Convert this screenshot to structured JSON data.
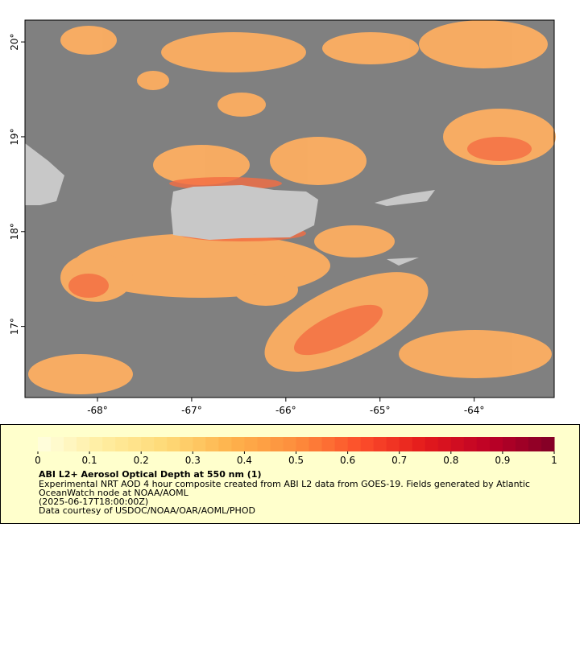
{
  "map": {
    "xlim": [
      -68.77,
      -63.15
    ],
    "ylim": [
      16.25,
      20.23
    ],
    "xticks": [
      {
        "value": -68,
        "label": "-68°"
      },
      {
        "value": -67,
        "label": "-67°"
      },
      {
        "value": -66,
        "label": "-66°"
      },
      {
        "value": -65,
        "label": "-65°"
      },
      {
        "value": -64,
        "label": "-64°"
      }
    ],
    "yticks": [
      {
        "value": 17,
        "label": "17°"
      },
      {
        "value": 18,
        "label": "18°"
      },
      {
        "value": 19,
        "label": "19°"
      },
      {
        "value": 20,
        "label": "20°"
      }
    ]
  },
  "colorbar": {
    "clim": [
      0,
      1
    ],
    "colors": [
      "#ffffe0",
      "#ffeda0",
      "#fed976",
      "#feb24c",
      "#fd8d3c",
      "#fc4e2a",
      "#e31a1c",
      "#bd0026",
      "#800026"
    ],
    "ticks": [
      0,
      0.1,
      0.2,
      0.3,
      0.4,
      0.5,
      0.6,
      0.7,
      0.8,
      0.9,
      1
    ]
  },
  "legend": {
    "title": "ABI L2+ Aerosol Optical Depth at 550 nm (1)",
    "lines": [
      "Experimental NRT AOD 4 hour composite created from ABI L2 data from GOES-19. Fields generated by Atlantic",
      "OceanWatch node at NOAA/AOML",
      "(2025-06-17T18:00:00Z)",
      "Data courtesy of USDOC/NOAA/OAR/AOML/PHOD"
    ]
  }
}
